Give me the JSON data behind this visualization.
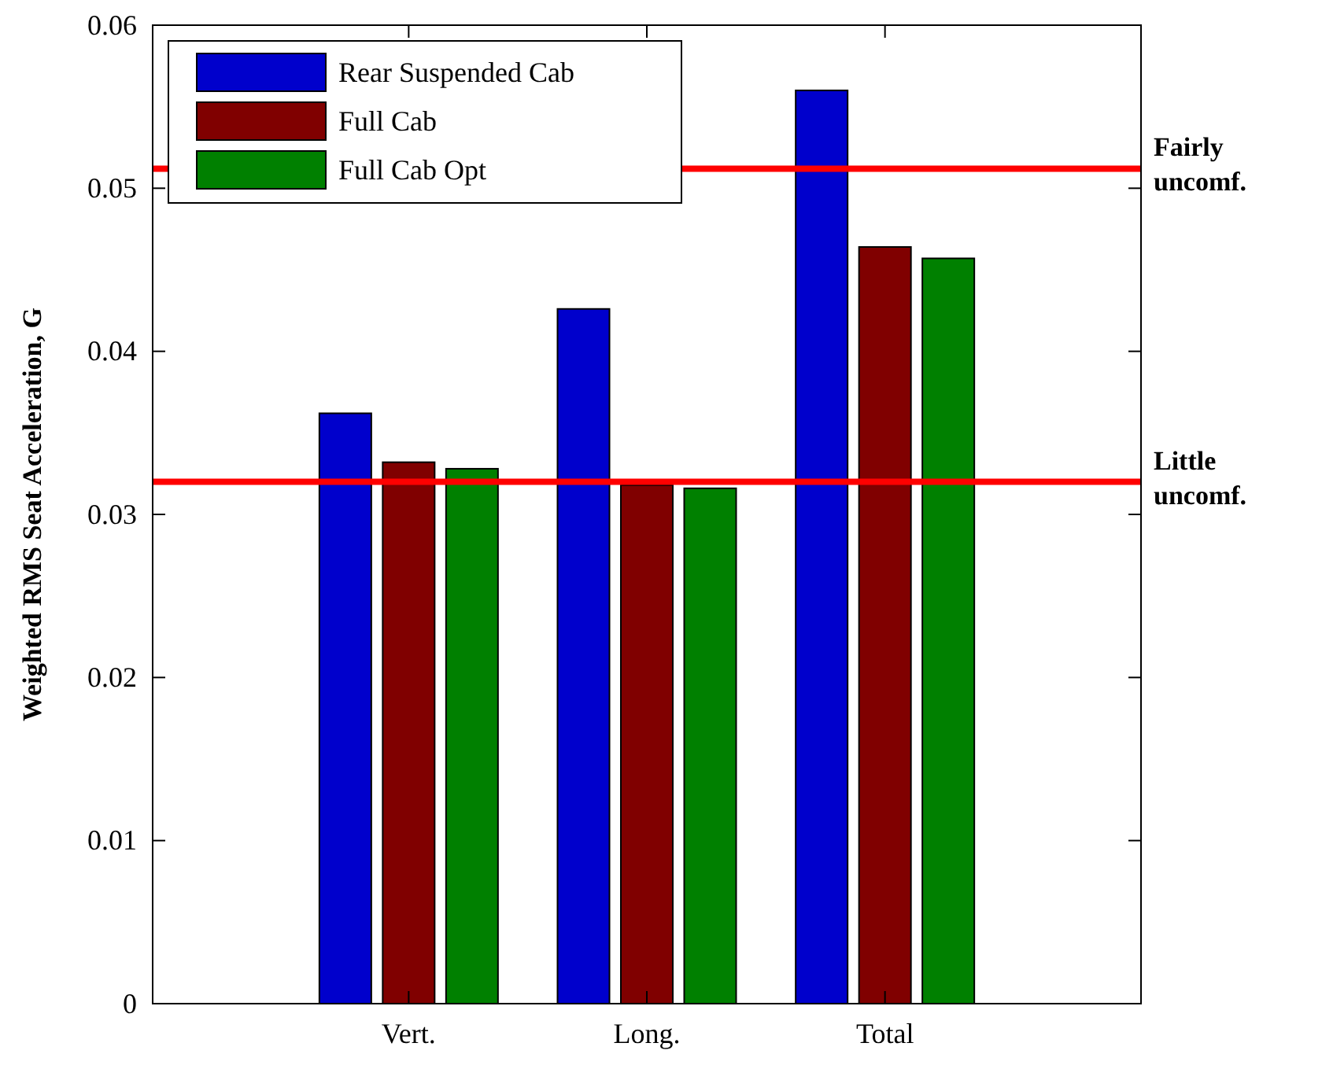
{
  "chart_data": {
    "type": "bar",
    "ylabel": "Weighted RMS Seat Acceleration, G",
    "categories": [
      "Vert.",
      "Long.",
      "Total"
    ],
    "series": [
      {
        "name": "Rear Suspended Cab",
        "color": "#0000cc",
        "values": [
          0.0362,
          0.0426,
          0.056
        ]
      },
      {
        "name": "Full Cab",
        "color": "#800000",
        "values": [
          0.0332,
          0.0318,
          0.0464
        ]
      },
      {
        "name": "Full Cab Opt",
        "color": "#008000",
        "values": [
          0.0328,
          0.0316,
          0.0457
        ]
      }
    ],
    "ylim": [
      0,
      0.06
    ],
    "yticks": [
      0,
      0.01,
      0.02,
      0.03,
      0.04,
      0.05,
      0.06
    ],
    "ref_lines": [
      {
        "axis": "y",
        "value": 0.0512,
        "label": "Fairly uncomf.",
        "color": "#ff0000"
      },
      {
        "axis": "y",
        "value": 0.032,
        "label": "Little uncomf.",
        "color": "#ff0000"
      }
    ],
    "legend": "top left",
    "grid": false
  }
}
